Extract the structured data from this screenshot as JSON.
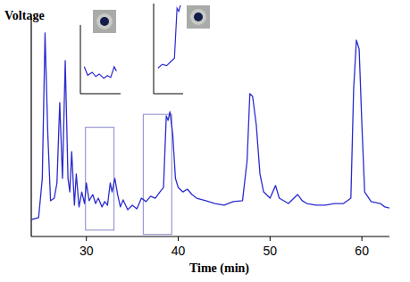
{
  "chart_data": {
    "type": "line",
    "y_label": "Voltage",
    "x_label": "Time (min)",
    "x": [
      24.0,
      24.8,
      25.2,
      25.5,
      25.8,
      26.1,
      26.5,
      26.8,
      27.1,
      27.4,
      27.7,
      28.0,
      28.2,
      28.4,
      28.7,
      28.9,
      29.2,
      29.5,
      29.8,
      30.0,
      30.3,
      30.7,
      31.0,
      31.3,
      31.7,
      32.0,
      32.3,
      32.6,
      32.8,
      33.1,
      33.4,
      33.7,
      34.0,
      34.5,
      35.0,
      35.5,
      36.0,
      36.5,
      37.0,
      37.5,
      38.0,
      38.4,
      38.7,
      38.9,
      39.1,
      39.4,
      39.7,
      40.0,
      40.5,
      41.0,
      41.5,
      42.0,
      43.0,
      44.0,
      45.0,
      46.0,
      47.0,
      47.5,
      47.8,
      48.1,
      48.5,
      48.9,
      49.3,
      50.0,
      50.6,
      51.0,
      52.0,
      53.0,
      53.5,
      54.0,
      55.0,
      56.0,
      57.0,
      58.0,
      58.8,
      59.1,
      59.4,
      59.7,
      60.0,
      60.3,
      61.0,
      62.0,
      62.5,
      63.0
    ],
    "values": [
      7.9,
      8.8,
      27.1,
      95,
      47.9,
      16.7,
      17.9,
      25,
      62.5,
      27.1,
      82.1,
      27.1,
      20.8,
      39.6,
      14.6,
      29.2,
      13.8,
      20.8,
      15.4,
      25,
      16.7,
      19.6,
      15.4,
      17.9,
      13.8,
      16.3,
      14.6,
      25,
      20.8,
      27.1,
      19.6,
      13.8,
      17.1,
      12.5,
      14.6,
      12.9,
      17.9,
      16.3,
      18.8,
      17.9,
      20.8,
      22.9,
      56.3,
      54.2,
      58.3,
      47.9,
      27.1,
      22.9,
      20.8,
      22.1,
      19.6,
      17.9,
      16.7,
      15.4,
      14.6,
      16.3,
      16.7,
      35.4,
      66.7,
      65.4,
      52.1,
      29.2,
      20.8,
      17.9,
      23.8,
      17.9,
      15.4,
      19.6,
      16.7,
      15.4,
      14.6,
      14.6,
      15.4,
      15.4,
      17.9,
      68.8,
      91.7,
      87.5,
      52.1,
      20.8,
      16.3,
      15.4,
      13.8,
      13.3
    ],
    "color": "#2b2bd0",
    "xlim": [
      24,
      63
    ],
    "ylim": [
      0,
      100
    ],
    "xticks": [
      30,
      40,
      50,
      60
    ],
    "tick_labels": "x",
    "grid": false,
    "highlight_boxes": [
      {
        "x": [
          29.9,
          33.0
        ],
        "y": [
          3,
          51
        ]
      },
      {
        "x": [
          36.2,
          39.3
        ],
        "y": [
          1,
          57
        ]
      }
    ]
  }
}
